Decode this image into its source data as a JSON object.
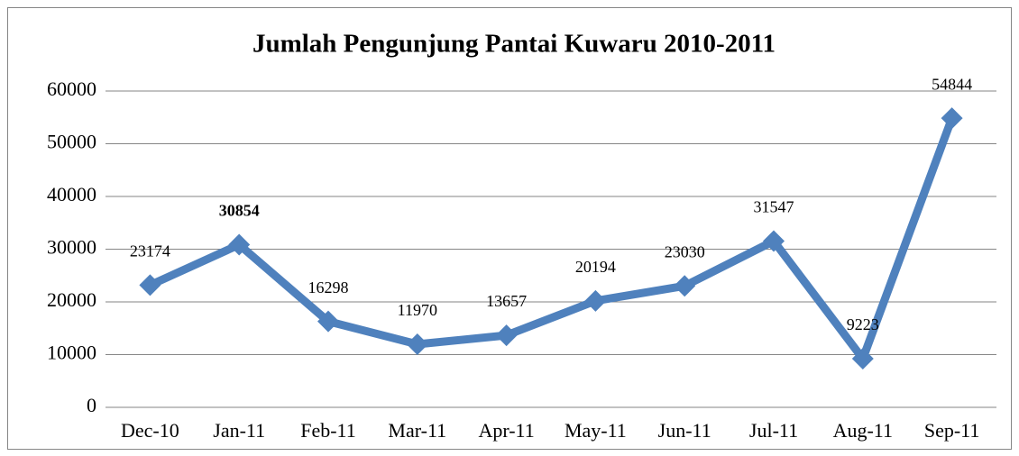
{
  "chart_data": {
    "type": "line",
    "title": "Jumlah Pengunjung Pantai Kuwaru 2010-2011",
    "categories": [
      "Dec-10",
      "Jan-11",
      "Feb-11",
      "Mar-11",
      "Apr-11",
      "May-11",
      "Jun-11",
      "Jul-11",
      "Aug-11",
      "Sep-11"
    ],
    "series": [
      {
        "name": "Jumlah Pengunjung",
        "color": "#4f81bd",
        "values": [
          23174,
          30854,
          16298,
          11970,
          13657,
          20194,
          23030,
          31547,
          9223,
          54844
        ]
      }
    ],
    "ylim": [
      0,
      60000
    ],
    "yticks": [
      0,
      10000,
      20000,
      30000,
      40000,
      50000,
      60000
    ],
    "grid": true
  }
}
